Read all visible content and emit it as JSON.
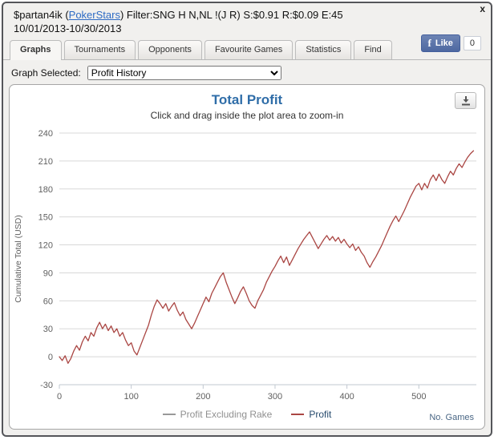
{
  "window": {
    "close_label": "x"
  },
  "header": {
    "prefix": "$partan4ik (",
    "site_link": "PokerStars",
    "suffix": ") Filter:SNG H N,NL !(J R) S:$0.91 R:$0.09 E:45",
    "date_range": "10/01/2013-10/30/2013"
  },
  "facebook": {
    "f_glyph": "f",
    "like_label": "Like",
    "count": "0"
  },
  "tabs": {
    "active": "Graphs",
    "items": [
      {
        "label": "Graphs"
      },
      {
        "label": "Tournaments"
      },
      {
        "label": "Opponents"
      },
      {
        "label": "Favourite Games"
      },
      {
        "label": "Statistics"
      },
      {
        "label": "Find"
      }
    ]
  },
  "selector": {
    "label": "Graph Selected:",
    "value": "Profit History"
  },
  "chart_data": {
    "type": "line",
    "title": "Total Profit",
    "subtitle": "Click and drag inside the plot area to zoom-in",
    "ylabel": "Cumulative Total (USD)",
    "xlabel": "No. Games",
    "ylim": [
      -30,
      240
    ],
    "xlim": [
      0,
      580
    ],
    "yticks": [
      -30,
      0,
      30,
      60,
      90,
      120,
      150,
      180,
      210,
      240
    ],
    "xticks": [
      0,
      100,
      200,
      300,
      400,
      500
    ],
    "grid": "horizontal-only",
    "legend_position": "bottom-center",
    "legend": [
      {
        "name": "Profit Excluding Rake",
        "color": "#999999",
        "hidden": true
      },
      {
        "name": "Profit",
        "color": "#AA4643",
        "hidden": false
      }
    ],
    "series": [
      {
        "name": "Profit",
        "color": "#AA4643",
        "points": [
          [
            0,
            0
          ],
          [
            4,
            -4
          ],
          [
            8,
            1
          ],
          [
            12,
            -7
          ],
          [
            16,
            -2
          ],
          [
            20,
            6
          ],
          [
            24,
            12
          ],
          [
            28,
            7
          ],
          [
            32,
            16
          ],
          [
            36,
            22
          ],
          [
            40,
            17
          ],
          [
            44,
            26
          ],
          [
            48,
            22
          ],
          [
            52,
            31
          ],
          [
            56,
            37
          ],
          [
            60,
            30
          ],
          [
            64,
            35
          ],
          [
            68,
            28
          ],
          [
            72,
            33
          ],
          [
            76,
            26
          ],
          [
            80,
            30
          ],
          [
            84,
            22
          ],
          [
            88,
            26
          ],
          [
            92,
            18
          ],
          [
            96,
            12
          ],
          [
            100,
            15
          ],
          [
            104,
            6
          ],
          [
            108,
            2
          ],
          [
            112,
            10
          ],
          [
            116,
            18
          ],
          [
            120,
            26
          ],
          [
            124,
            34
          ],
          [
            128,
            45
          ],
          [
            132,
            54
          ],
          [
            136,
            61
          ],
          [
            140,
            57
          ],
          [
            144,
            52
          ],
          [
            148,
            57
          ],
          [
            152,
            49
          ],
          [
            156,
            54
          ],
          [
            160,
            58
          ],
          [
            164,
            50
          ],
          [
            168,
            44
          ],
          [
            172,
            48
          ],
          [
            176,
            40
          ],
          [
            180,
            35
          ],
          [
            184,
            30
          ],
          [
            188,
            36
          ],
          [
            192,
            43
          ],
          [
            196,
            50
          ],
          [
            200,
            57
          ],
          [
            204,
            64
          ],
          [
            208,
            59
          ],
          [
            212,
            68
          ],
          [
            216,
            74
          ],
          [
            220,
            80
          ],
          [
            224,
            86
          ],
          [
            228,
            90
          ],
          [
            232,
            80
          ],
          [
            236,
            72
          ],
          [
            240,
            64
          ],
          [
            244,
            57
          ],
          [
            248,
            63
          ],
          [
            252,
            70
          ],
          [
            256,
            75
          ],
          [
            260,
            68
          ],
          [
            264,
            60
          ],
          [
            268,
            55
          ],
          [
            272,
            52
          ],
          [
            276,
            60
          ],
          [
            280,
            66
          ],
          [
            284,
            72
          ],
          [
            288,
            80
          ],
          [
            292,
            86
          ],
          [
            296,
            92
          ],
          [
            300,
            97
          ],
          [
            304,
            103
          ],
          [
            308,
            108
          ],
          [
            312,
            101
          ],
          [
            316,
            107
          ],
          [
            320,
            98
          ],
          [
            324,
            104
          ],
          [
            328,
            110
          ],
          [
            332,
            116
          ],
          [
            336,
            121
          ],
          [
            340,
            126
          ],
          [
            344,
            130
          ],
          [
            348,
            134
          ],
          [
            352,
            128
          ],
          [
            356,
            122
          ],
          [
            360,
            116
          ],
          [
            364,
            121
          ],
          [
            368,
            126
          ],
          [
            372,
            130
          ],
          [
            376,
            125
          ],
          [
            380,
            129
          ],
          [
            384,
            124
          ],
          [
            388,
            128
          ],
          [
            392,
            122
          ],
          [
            396,
            126
          ],
          [
            400,
            121
          ],
          [
            404,
            117
          ],
          [
            408,
            121
          ],
          [
            412,
            114
          ],
          [
            416,
            118
          ],
          [
            420,
            112
          ],
          [
            424,
            108
          ],
          [
            428,
            101
          ],
          [
            432,
            96
          ],
          [
            436,
            102
          ],
          [
            440,
            107
          ],
          [
            444,
            113
          ],
          [
            448,
            119
          ],
          [
            452,
            126
          ],
          [
            456,
            133
          ],
          [
            460,
            140
          ],
          [
            464,
            146
          ],
          [
            468,
            151
          ],
          [
            472,
            145
          ],
          [
            476,
            151
          ],
          [
            480,
            157
          ],
          [
            484,
            164
          ],
          [
            488,
            171
          ],
          [
            492,
            177
          ],
          [
            496,
            183
          ],
          [
            500,
            186
          ],
          [
            504,
            179
          ],
          [
            508,
            186
          ],
          [
            512,
            181
          ],
          [
            516,
            190
          ],
          [
            520,
            195
          ],
          [
            524,
            189
          ],
          [
            528,
            196
          ],
          [
            532,
            190
          ],
          [
            536,
            186
          ],
          [
            540,
            193
          ],
          [
            544,
            199
          ],
          [
            548,
            195
          ],
          [
            552,
            202
          ],
          [
            556,
            207
          ],
          [
            560,
            203
          ],
          [
            564,
            209
          ],
          [
            568,
            214
          ],
          [
            572,
            218
          ],
          [
            576,
            221
          ]
        ]
      }
    ]
  }
}
